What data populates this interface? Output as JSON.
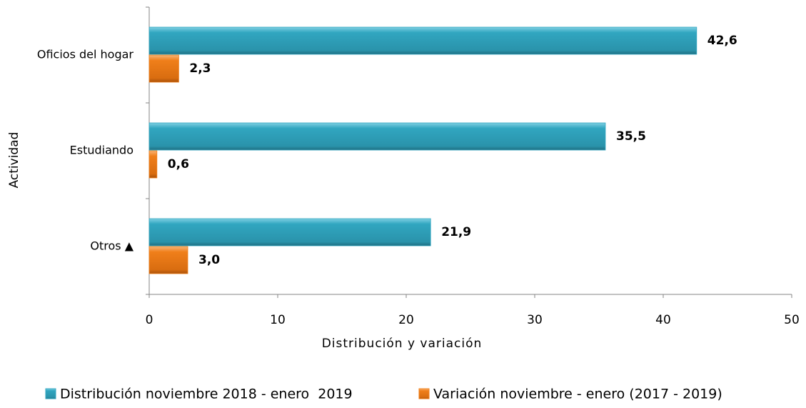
{
  "chart_data": {
    "type": "bar",
    "orientation": "horizontal",
    "x_label": "Distribución y variación",
    "y_label": "Actividad",
    "categories": [
      "Oficios del hogar",
      "Estudiando",
      "Otros ▲"
    ],
    "series": [
      {
        "name": "Distribución noviembre 2018 - enero  2019",
        "color": "#31a6c0",
        "label_color": "#2e4a6b",
        "values": [
          42.6,
          35.5,
          21.9
        ],
        "value_labels": [
          "42,6",
          "35,5",
          "21,9"
        ]
      },
      {
        "name": "Variación noviembre - enero (2017 - 2019)",
        "color": "#f07f1a",
        "label_color": "#e36c09",
        "values": [
          2.3,
          0.6,
          3.0
        ],
        "value_labels": [
          "2,3",
          "0,6",
          "3,0"
        ]
      }
    ],
    "xlim": [
      0,
      50
    ],
    "xticks": [
      0,
      10,
      20,
      30,
      40,
      50
    ],
    "grid": false,
    "legend": "bottom"
  }
}
